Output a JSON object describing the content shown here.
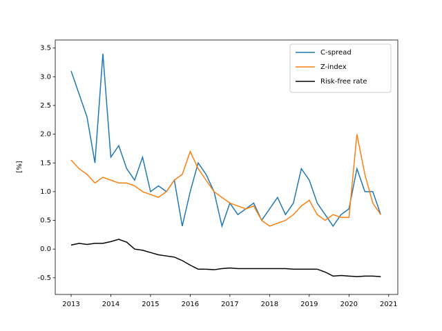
{
  "chart_data": {
    "type": "line",
    "ylabel": "[%]",
    "x": [
      2013.0,
      2013.2,
      2013.4,
      2013.6,
      2013.8,
      2014.0,
      2014.2,
      2014.4,
      2014.6,
      2014.8,
      2015.0,
      2015.2,
      2015.4,
      2015.6,
      2015.8,
      2016.0,
      2016.2,
      2016.4,
      2016.6,
      2016.8,
      2017.0,
      2017.2,
      2017.4,
      2017.6,
      2017.8,
      2018.0,
      2018.2,
      2018.4,
      2018.6,
      2018.8,
      2019.0,
      2019.2,
      2019.4,
      2019.6,
      2019.8,
      2020.0,
      2020.2,
      2020.4,
      2020.6,
      2020.8
    ],
    "series": [
      {
        "name": "C-spread",
        "color": "#1f77b4",
        "values": [
          3.1,
          2.7,
          2.3,
          1.5,
          3.4,
          1.6,
          1.8,
          1.4,
          1.2,
          1.6,
          1.0,
          1.1,
          1.0,
          1.2,
          0.4,
          1.0,
          1.5,
          1.3,
          1.0,
          0.4,
          0.8,
          0.6,
          0.7,
          0.8,
          0.5,
          0.7,
          0.9,
          0.6,
          0.8,
          1.4,
          1.2,
          0.8,
          0.6,
          0.4,
          0.6,
          0.7,
          1.4,
          1.0,
          1.0,
          0.6
        ]
      },
      {
        "name": "Z-index",
        "color": "#ff7f0e",
        "values": [
          1.55,
          1.4,
          1.3,
          1.15,
          1.25,
          1.2,
          1.15,
          1.15,
          1.1,
          1.0,
          0.95,
          0.9,
          1.0,
          1.2,
          1.3,
          1.7,
          1.4,
          1.2,
          1.0,
          0.9,
          0.8,
          0.75,
          0.7,
          0.75,
          0.5,
          0.4,
          0.45,
          0.5,
          0.6,
          0.75,
          0.85,
          0.6,
          0.5,
          0.6,
          0.55,
          0.55,
          2.0,
          1.3,
          0.8,
          0.6
        ]
      },
      {
        "name": "Risk-free rate",
        "color": "#000000",
        "values": [
          0.07,
          0.1,
          0.08,
          0.1,
          0.1,
          0.13,
          0.17,
          0.12,
          0.0,
          -0.02,
          -0.06,
          -0.1,
          -0.12,
          -0.14,
          -0.2,
          -0.28,
          -0.35,
          -0.35,
          -0.36,
          -0.34,
          -0.33,
          -0.34,
          -0.34,
          -0.34,
          -0.34,
          -0.34,
          -0.34,
          -0.34,
          -0.35,
          -0.35,
          -0.35,
          -0.35,
          -0.4,
          -0.47,
          -0.46,
          -0.47,
          -0.48,
          -0.47,
          -0.47,
          -0.48
        ]
      }
    ],
    "xlim": [
      2012.6,
      2021.23
    ],
    "xticks": [
      2013,
      2014,
      2015,
      2016,
      2017,
      2018,
      2019,
      2020,
      2021
    ],
    "ylim": [
      -0.79,
      3.64
    ],
    "yticks": [
      -0.5,
      {
        "value": 0,
        "label": "0.0"
      },
      0.5,
      {
        "value": 1,
        "label": "1.0"
      },
      1.5,
      {
        "value": 2,
        "label": "2.0"
      },
      2.5,
      {
        "value": 3,
        "label": "3.0"
      },
      3.5
    ],
    "legend": "upper right"
  }
}
